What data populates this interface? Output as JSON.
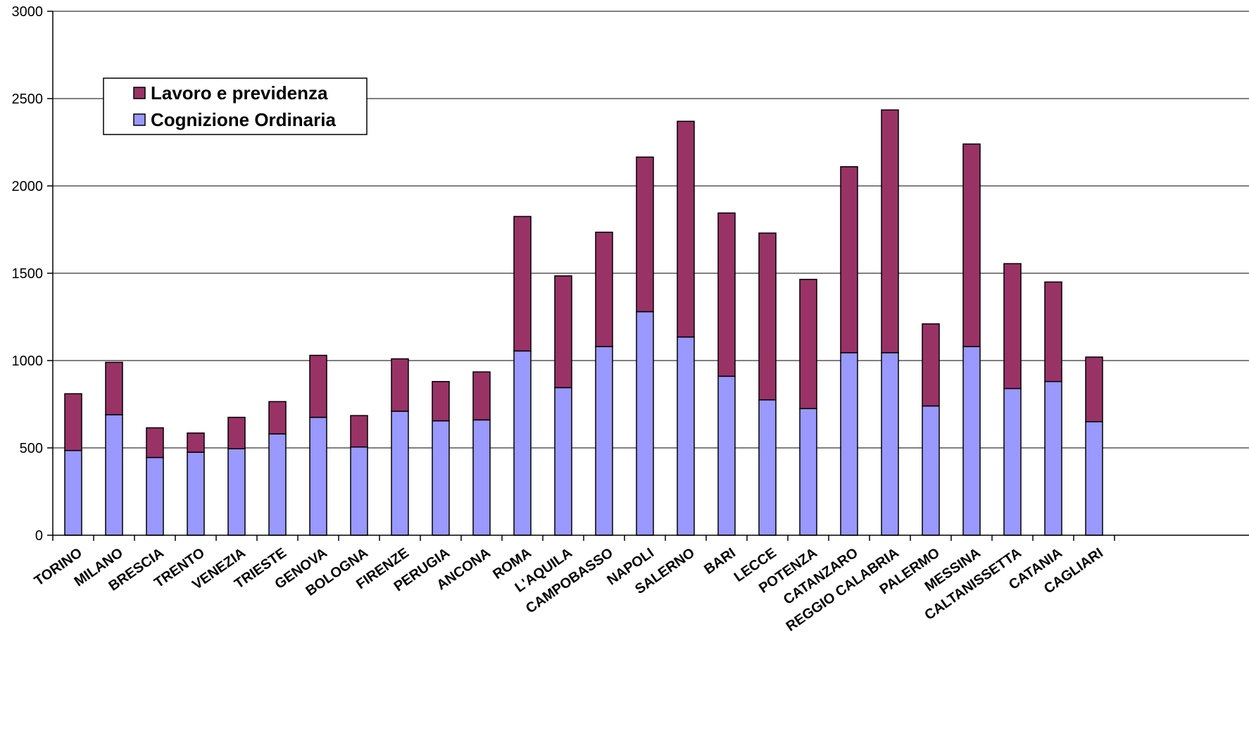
{
  "chart_data": {
    "type": "bar",
    "stacked": true,
    "categories": [
      "TORINO",
      "MILANO",
      "BRESCIA",
      "TRENTO",
      "VENEZIA",
      "TRIESTE",
      "GENOVA",
      "BOLOGNA",
      "FIRENZE",
      "PERUGIA",
      "ANCONA",
      "ROMA",
      "L'AQUILA",
      "CAMPOBASSO",
      "NAPOLI",
      "SALERNO",
      "BARI",
      "LECCE",
      "POTENZA",
      "CATANZARO",
      "REGGIO CALABRIA",
      "PALERMO",
      "MESSINA",
      "CALTANISSETTA",
      "CATANIA",
      "CAGLIARI"
    ],
    "series": [
      {
        "name": "Cognizione Ordinaria",
        "color": "#9999ff",
        "values": [
          485,
          690,
          445,
          475,
          495,
          580,
          675,
          505,
          710,
          655,
          660,
          1055,
          845,
          1080,
          1280,
          1135,
          910,
          775,
          725,
          1045,
          1045,
          740,
          1080,
          840,
          880,
          650
        ]
      },
      {
        "name": "Lavoro e previdenza",
        "color": "#993366",
        "values": [
          325,
          300,
          170,
          110,
          180,
          185,
          355,
          180,
          300,
          225,
          275,
          770,
          640,
          655,
          885,
          1235,
          935,
          955,
          740,
          1065,
          1390,
          470,
          1160,
          715,
          570,
          370
        ]
      }
    ],
    "ylim": [
      0,
      3000
    ],
    "yticks": [
      0,
      500,
      1000,
      1500,
      2000,
      2500,
      3000
    ],
    "ytick_labels": [
      "0",
      "500",
      "1000",
      "1500",
      "2000",
      "2500",
      "3000"
    ],
    "grid": true,
    "legend_placement": "top-left",
    "legend_order": [
      "Lavoro e previdenza",
      "Cognizione Ordinaria"
    ],
    "title": "",
    "xlabel": "",
    "ylabel": ""
  }
}
